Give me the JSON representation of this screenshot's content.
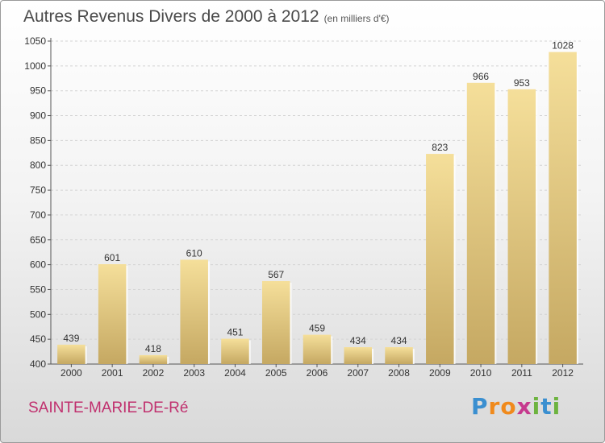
{
  "chart_data": {
    "type": "bar",
    "title": "Autres Revenus Divers de 2000 à 2012",
    "unit_label": "(en milliers d'€)",
    "categories": [
      "2000",
      "2001",
      "2002",
      "2003",
      "2004",
      "2005",
      "2006",
      "2007",
      "2008",
      "2009",
      "2010",
      "2011",
      "2012"
    ],
    "values": [
      439,
      601,
      418,
      610,
      451,
      567,
      459,
      434,
      434,
      823,
      966,
      953,
      1028
    ],
    "ylim": [
      400,
      1050
    ],
    "yticks": [
      400,
      450,
      500,
      550,
      600,
      650,
      700,
      750,
      800,
      850,
      900,
      950,
      1000,
      1050
    ],
    "grid": true,
    "bar_color": "#e5cb85"
  },
  "footer": {
    "city": "SAINTE-MARIE-DE-Ré",
    "logo_letters": [
      "P",
      "r",
      "o",
      "x",
      "i",
      "t",
      "i"
    ],
    "logo_colors": [
      "#3a8fd0",
      "#f08a1c",
      "#f08a1c",
      "#c63a8e",
      "#6db33f",
      "#3a8fd0",
      "#6db33f"
    ]
  }
}
